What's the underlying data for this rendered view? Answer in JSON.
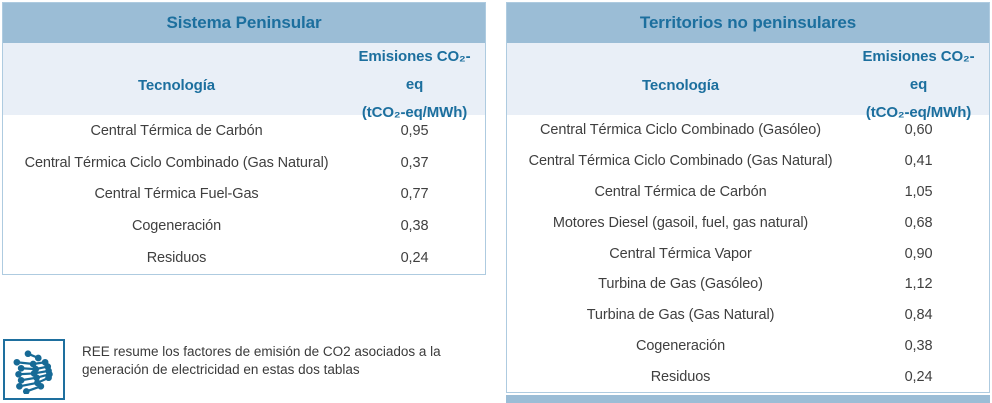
{
  "colors": {
    "header_bg": "#9bbdd6",
    "subheader_bg": "#e9eff7",
    "title_blue": "#1c6f9e",
    "body_text": "#3f3f3f",
    "table_border": "#aecbe0",
    "logo_blue": "#176a96"
  },
  "tables": [
    {
      "title": "Sistema Peninsular",
      "columns": {
        "tech": "Tecnología",
        "value_line1": "Emisiones CO₂-eq",
        "value_line2": "(tCO₂-eq/MWh)"
      },
      "rows": [
        {
          "tech": "Central Térmica de Carbón",
          "value": "0,95"
        },
        {
          "tech": "Central Térmica Ciclo Combinado (Gas Natural)",
          "value": "0,37"
        },
        {
          "tech": "Central Térmica Fuel-Gas",
          "value": "0,77"
        },
        {
          "tech": "Cogeneración",
          "value": "0,38"
        },
        {
          "tech": "Residuos",
          "value": "0,24"
        }
      ]
    },
    {
      "title": "Territorios no peninsulares",
      "columns": {
        "tech": "Tecnología",
        "value_line1": "Emisiones CO₂-eq",
        "value_line2": "(tCO₂-eq/MWh)"
      },
      "rows": [
        {
          "tech": "Central Térmica Ciclo Combinado (Gasóleo)",
          "value": "0,60"
        },
        {
          "tech": "Central Térmica Ciclo Combinado (Gas Natural)",
          "value": "0,41"
        },
        {
          "tech": "Central Térmica de Carbón",
          "value": "1,05"
        },
        {
          "tech": "Motores Diesel (gasoil, fuel, gas natural)",
          "value": "0,68"
        },
        {
          "tech": "Central Térmica Vapor",
          "value": "0,90"
        },
        {
          "tech": "Turbina de Gas (Gasóleo)",
          "value": "1,12"
        },
        {
          "tech": "Turbina de Gas (Gas Natural)",
          "value": "0,84"
        },
        {
          "tech": "Cogeneración",
          "value": "0,38"
        },
        {
          "tech": "Residuos",
          "value": "0,24"
        }
      ]
    }
  ],
  "caption": {
    "text": "REE resume los factores de emisión de CO2 asociados a la generación de electricidad en estas dos tablas",
    "logo": "ree-network-logo"
  }
}
